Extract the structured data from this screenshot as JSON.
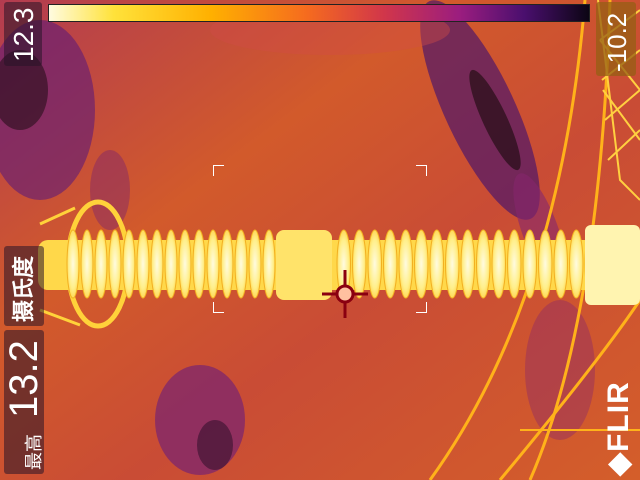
{
  "temperature_scale": {
    "max_value": "12.3",
    "min_value": "-10.2",
    "palette": "iron",
    "colors": [
      "#fffbe0",
      "#ffe23a",
      "#ffb000",
      "#f56a1f",
      "#d1364a",
      "#9b1d7f",
      "#4a0f6e",
      "#0c0514"
    ]
  },
  "measurement": {
    "unit_label": "摄氏度",
    "reading_value": "13.2",
    "reading_label": "最高"
  },
  "brand": {
    "logo_text": "FLIR"
  },
  "scene": {
    "subject": "high-voltage insulator",
    "background_color": "#c8502a",
    "insulator_color": "#ffe873"
  }
}
